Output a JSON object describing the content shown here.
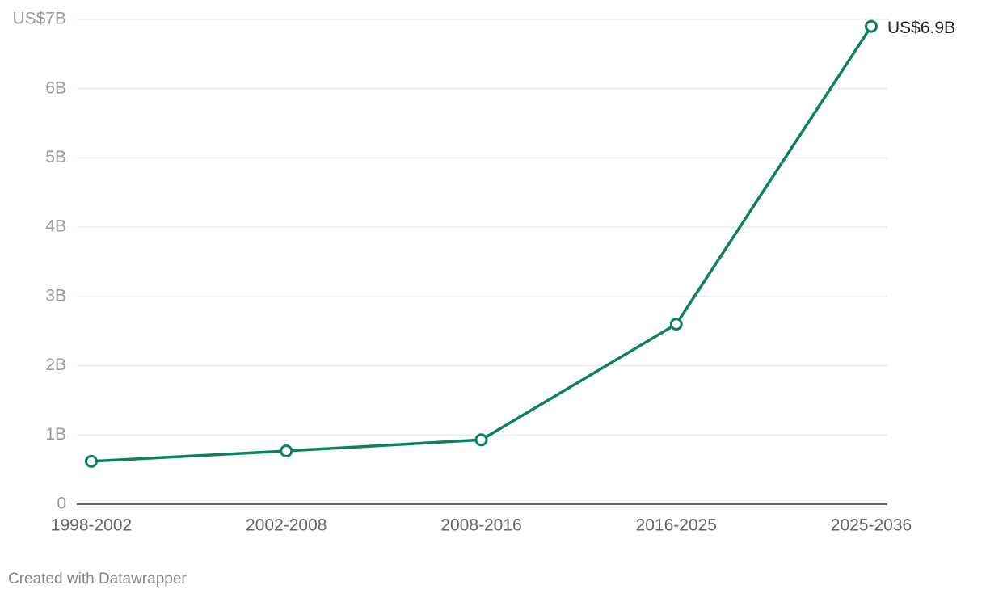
{
  "chart_data": {
    "type": "line",
    "categories": [
      "1998-2002",
      "2002-2008",
      "2008-2016",
      "2016-2025",
      "2025-2036"
    ],
    "series": [
      {
        "color": "#0b8062",
        "values": [
          0.62,
          0.77,
          0.93,
          2.6,
          6.9
        ],
        "value_labels": [
          null,
          null,
          null,
          null,
          "US$6.9B"
        ]
      }
    ],
    "ylim": [
      0,
      7
    ],
    "yticks": [
      0,
      {
        "value": 1,
        "label": "1B"
      },
      {
        "value": 2,
        "label": "2B"
      },
      {
        "value": 3,
        "label": "3B"
      },
      {
        "value": 4,
        "label": "4B"
      },
      {
        "value": 5,
        "label": "5B"
      },
      {
        "value": 6,
        "label": "6B"
      },
      {
        "value": 7,
        "label": "US$7B"
      }
    ],
    "grid": true,
    "credit": "Created with Datawrapper"
  }
}
